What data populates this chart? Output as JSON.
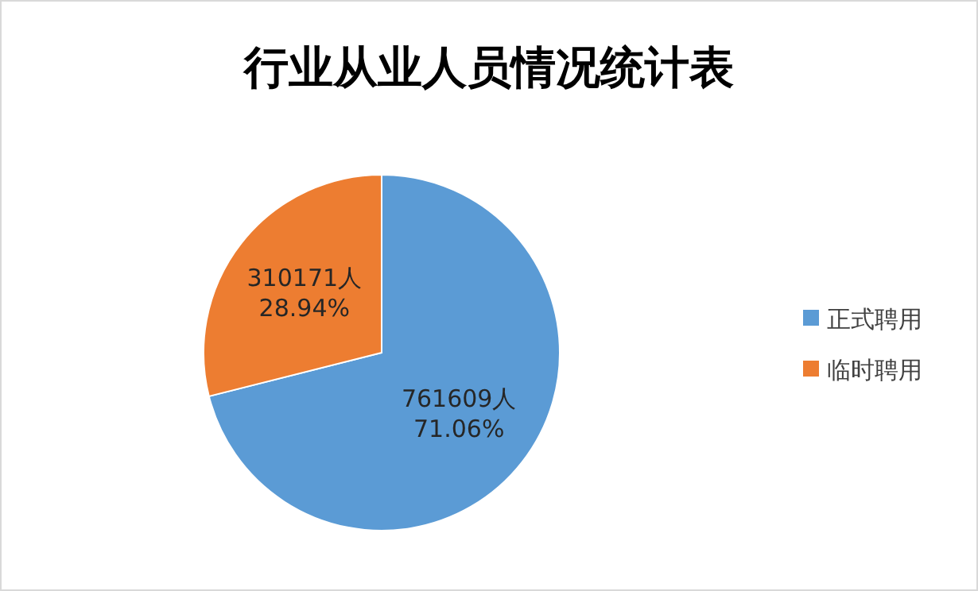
{
  "chart_data": {
    "type": "pie",
    "title": "行业从业人员情况统计表",
    "categories": [
      "正式聘用",
      "临时聘用"
    ],
    "values": [
      761609,
      310171
    ],
    "colors": [
      "#5b9bd5",
      "#ed7d31"
    ],
    "value_labels": [
      "761609人\n71.06%",
      "310171人\n28.94%"
    ],
    "legend": "right"
  }
}
